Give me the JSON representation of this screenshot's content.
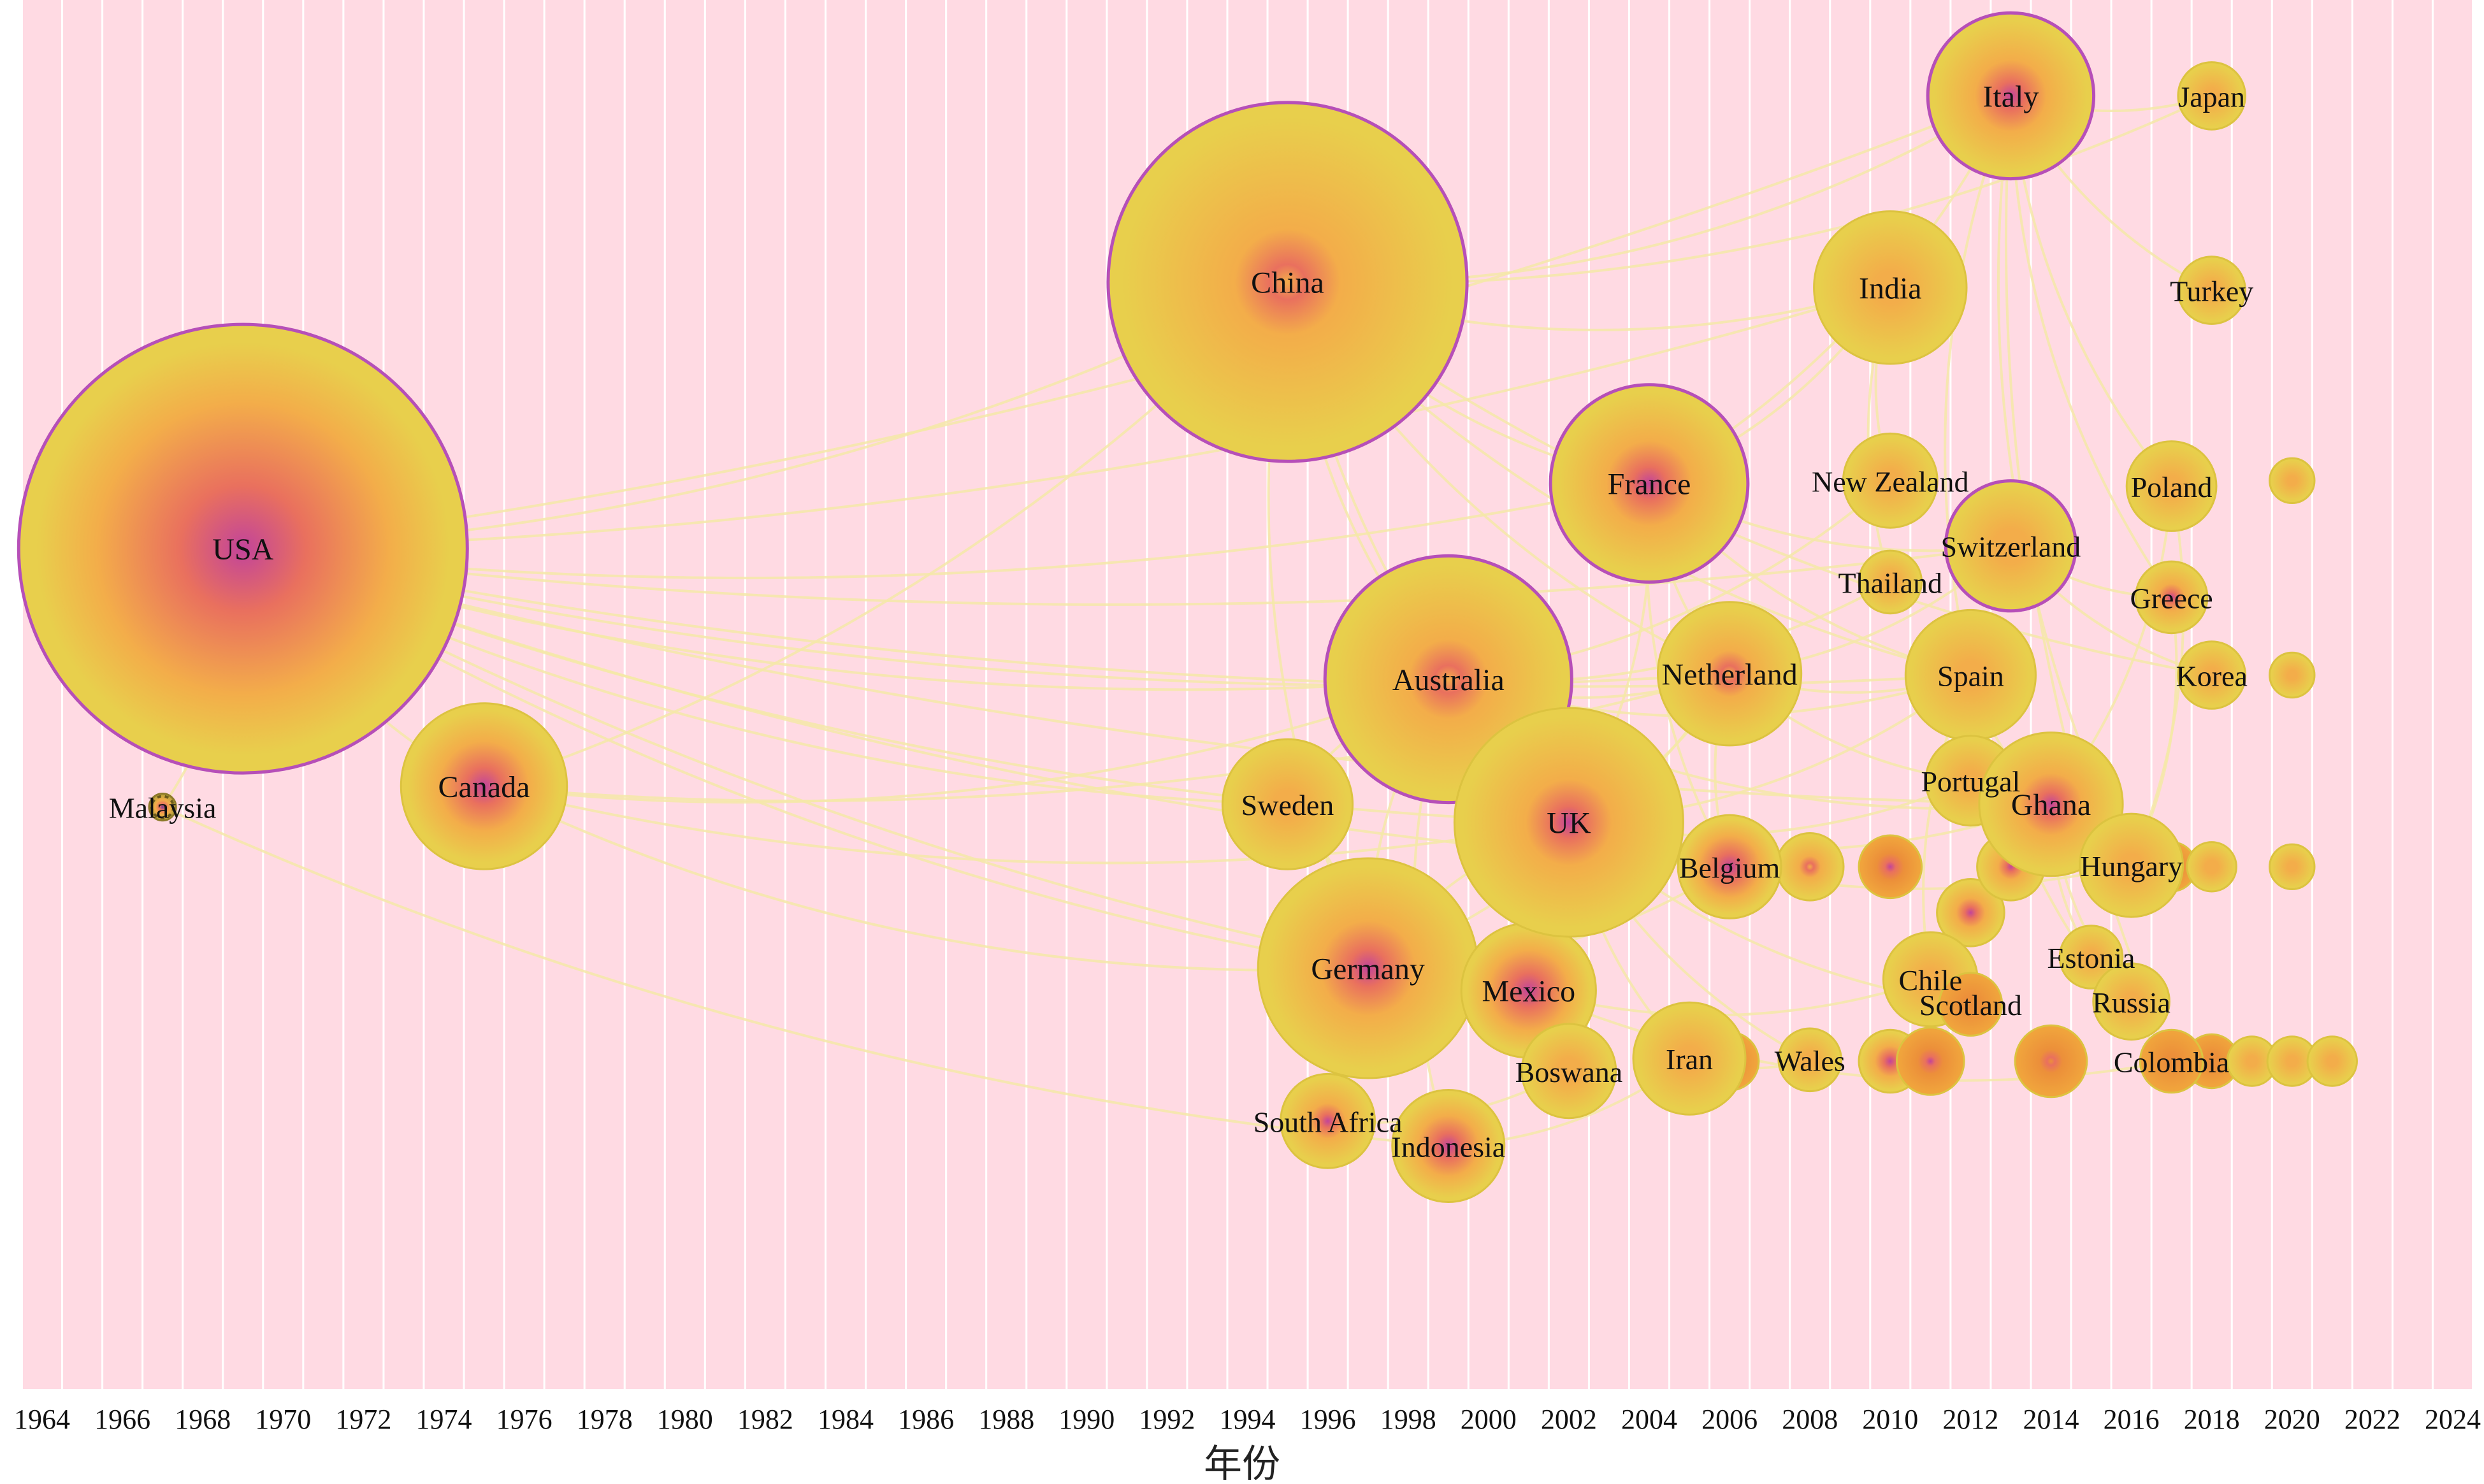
{
  "axis": {
    "title": "年份",
    "year_min": 1964,
    "year_max": 2024,
    "tick_step": 2,
    "ticks": [
      "1964",
      "1966",
      "1968",
      "1970",
      "1972",
      "1974",
      "1976",
      "1978",
      "1980",
      "1982",
      "1984",
      "1986",
      "1988",
      "1990",
      "1992",
      "1994",
      "1996",
      "1998",
      "2000",
      "2002",
      "2004",
      "2006",
      "2008",
      "2010",
      "2012",
      "2014",
      "2016",
      "2018",
      "2020",
      "2022",
      "2024"
    ]
  },
  "colors": {
    "stripe": "#ffdae3",
    "node_outer": "#e8cf4c",
    "node_mid": "#f3ad4a",
    "node_inner": "#c2449a",
    "ring": "#b64fb8",
    "link": "#f5e7a8"
  },
  "nodes": [
    {
      "label": "USA",
      "year": 1969,
      "row": 0.395,
      "size": 100,
      "core": 1.0,
      "ring": true
    },
    {
      "label": "Malaysia",
      "year": 1967,
      "row": 0.581,
      "size": 6,
      "core": 0.8,
      "dark": true
    },
    {
      "label": "Canada",
      "year": 1975,
      "row": 0.566,
      "size": 37,
      "core": 0.8
    },
    {
      "label": "China",
      "year": 1995,
      "row": 0.203,
      "size": 80,
      "core": 0.35,
      "ring": true
    },
    {
      "label": "Australia",
      "year": 1999,
      "row": 0.489,
      "size": 55,
      "core": 0.4,
      "ring": true
    },
    {
      "label": "Sweden",
      "year": 1995,
      "row": 0.579,
      "size": 29,
      "core": 0.2
    },
    {
      "label": "Germany",
      "year": 1997,
      "row": 0.697,
      "size": 49,
      "core": 0.6
    },
    {
      "label": "South Africa",
      "year": 1996,
      "row": 0.807,
      "size": 21,
      "core": 0.5
    },
    {
      "label": "Indonesia",
      "year": 1999,
      "row": 0.825,
      "size": 25,
      "core": 0.8
    },
    {
      "label": "Mexico",
      "year": 2001,
      "row": 0.713,
      "size": 30,
      "core": 0.9
    },
    {
      "label": "UK",
      "year": 2002,
      "row": 0.592,
      "size": 51,
      "core": 0.5
    },
    {
      "label": "France",
      "year": 2004,
      "row": 0.348,
      "size": 44,
      "core": 0.6,
      "ring": true
    },
    {
      "label": "Boswana",
      "year": 2002,
      "row": 0.771,
      "size": 21,
      "core": 0.3
    },
    {
      "label": "Iran",
      "year": 2005,
      "row": 0.762,
      "size": 25,
      "core": 0.2
    },
    {
      "label": "Netherland",
      "year": 2006,
      "row": 0.485,
      "size": 32,
      "core": 0.4
    },
    {
      "label": "Belgium",
      "year": 2006,
      "row": 0.624,
      "size": 23,
      "core": 0.9
    },
    {
      "label": "Wales",
      "year": 2008,
      "row": 0.763,
      "size": 14,
      "core": 0.2
    },
    {
      "label": "India",
      "year": 2010,
      "row": 0.207,
      "size": 34,
      "core": 0.2
    },
    {
      "label": "New Zealand",
      "year": 2010,
      "row": 0.346,
      "size": 21,
      "core": 0.2
    },
    {
      "label": "Thailand",
      "year": 2010,
      "row": 0.419,
      "size": 14,
      "core": 0.3
    },
    {
      "label": "Chile",
      "year": 2011,
      "row": 0.705,
      "size": 21,
      "core": 0.2
    },
    {
      "label": "Spain",
      "year": 2012,
      "row": 0.486,
      "size": 29,
      "core": 0.2
    },
    {
      "label": "Portugal",
      "year": 2012,
      "row": 0.562,
      "size": 20,
      "core": 0.2
    },
    {
      "label": "Scotland",
      "year": 2012,
      "row": 0.723,
      "size": 14,
      "core": 0.3,
      "orange": true
    },
    {
      "label": "Italy",
      "year": 2013,
      "row": 0.069,
      "size": 37,
      "core": 0.6,
      "ring": true
    },
    {
      "label": "Switzerland",
      "year": 2013,
      "row": 0.393,
      "size": 29,
      "core": 0.3,
      "ring": true
    },
    {
      "label": "Ghana",
      "year": 2014,
      "row": 0.579,
      "size": 32,
      "core": 0.6
    },
    {
      "label": "Hungary",
      "year": 2016,
      "row": 0.623,
      "size": 23,
      "core": 0.2
    },
    {
      "label": "Estonia",
      "year": 2015,
      "row": 0.689,
      "size": 14,
      "core": 0.2
    },
    {
      "label": "Russia",
      "year": 2016,
      "row": 0.721,
      "size": 17,
      "core": 0.2
    },
    {
      "label": "Poland",
      "year": 2017,
      "row": 0.35,
      "size": 20,
      "core": 0.2
    },
    {
      "label": "Greece",
      "year": 2017,
      "row": 0.43,
      "size": 16,
      "core": 0.5
    },
    {
      "label": "Colombia",
      "year": 2017,
      "row": 0.764,
      "size": 14,
      "core": 0.2,
      "orange": true
    },
    {
      "label": "Japan",
      "year": 2018,
      "row": 0.069,
      "size": 15,
      "core": 0.2
    },
    {
      "label": "Turkey",
      "year": 2018,
      "row": 0.209,
      "size": 15,
      "core": 0.2
    },
    {
      "label": "Korea",
      "year": 2018,
      "row": 0.486,
      "size": 15,
      "core": 0.2
    }
  ],
  "minor_nodes": [
    {
      "year": 2008,
      "row": 0.624,
      "size": 15,
      "core": 0.4
    },
    {
      "year": 2010,
      "row": 0.624,
      "size": 14,
      "core": 0.6,
      "orange": true
    },
    {
      "year": 2012,
      "row": 0.657,
      "size": 15,
      "core": 0.6
    },
    {
      "year": 2013,
      "row": 0.624,
      "size": 15,
      "core": 0.5
    },
    {
      "year": 2017,
      "row": 0.624,
      "size": 11,
      "core": 0.4,
      "orange": true
    },
    {
      "year": 2018,
      "row": 0.624,
      "size": 11,
      "core": 0.3
    },
    {
      "year": 2020,
      "row": 0.624,
      "size": 10,
      "core": 0.2
    },
    {
      "year": 2020,
      "row": 0.346,
      "size": 10,
      "core": 0.2
    },
    {
      "year": 2020,
      "row": 0.486,
      "size": 10,
      "core": 0.2
    },
    {
      "year": 2006,
      "row": 0.764,
      "size": 13,
      "core": 0.4,
      "orange": true
    },
    {
      "year": 2010,
      "row": 0.764,
      "size": 14,
      "core": 0.7
    },
    {
      "year": 2011,
      "row": 0.764,
      "size": 15,
      "core": 0.5,
      "orange": true
    },
    {
      "year": 2014,
      "row": 0.764,
      "size": 16,
      "core": 0.4,
      "orange": true
    },
    {
      "year": 2018,
      "row": 0.764,
      "size": 12,
      "core": 0.3,
      "orange": true
    },
    {
      "year": 2019,
      "row": 0.764,
      "size": 11,
      "core": 0.2
    },
    {
      "year": 2020,
      "row": 0.764,
      "size": 11,
      "core": 0.2
    },
    {
      "year": 2021,
      "row": 0.764,
      "size": 11,
      "core": 0.2
    }
  ],
  "links": [
    [
      "USA",
      "China"
    ],
    [
      "USA",
      "Australia"
    ],
    [
      "USA",
      "UK"
    ],
    [
      "USA",
      "Canada"
    ],
    [
      "USA",
      "Germany"
    ],
    [
      "USA",
      "France"
    ],
    [
      "USA",
      "Netherland"
    ],
    [
      "USA",
      "Sweden"
    ],
    [
      "USA",
      "Italy"
    ],
    [
      "USA",
      "India"
    ],
    [
      "USA",
      "Spain"
    ],
    [
      "USA",
      "Belgium"
    ],
    [
      "USA",
      "Mexico"
    ],
    [
      "USA",
      "Switzerland"
    ],
    [
      "USA",
      "Ghana"
    ],
    [
      "Canada",
      "Australia"
    ],
    [
      "Canada",
      "UK"
    ],
    [
      "Canada",
      "China"
    ],
    [
      "Canada",
      "Netherland"
    ],
    [
      "Canada",
      "Germany"
    ],
    [
      "Malaysia",
      "Indonesia"
    ],
    [
      "Malaysia",
      "USA"
    ],
    [
      "China",
      "Australia"
    ],
    [
      "China",
      "UK"
    ],
    [
      "China",
      "Italy"
    ],
    [
      "China",
      "India"
    ],
    [
      "China",
      "France"
    ],
    [
      "China",
      "Netherland"
    ],
    [
      "China",
      "Germany"
    ],
    [
      "China",
      "Japan"
    ],
    [
      "China",
      "Korea"
    ],
    [
      "China",
      "Spain"
    ],
    [
      "Australia",
      "UK"
    ],
    [
      "Australia",
      "New Zealand"
    ],
    [
      "Australia",
      "Netherland"
    ],
    [
      "Australia",
      "Spain"
    ],
    [
      "Australia",
      "Germany"
    ],
    [
      "Australia",
      "Sweden"
    ],
    [
      "Australia",
      "Indonesia"
    ],
    [
      "Australia",
      "Ghana"
    ],
    [
      "Australia",
      "Thailand"
    ],
    [
      "UK",
      "Netherland"
    ],
    [
      "UK",
      "Germany"
    ],
    [
      "UK",
      "France"
    ],
    [
      "UK",
      "Belgium"
    ],
    [
      "UK",
      "Ghana"
    ],
    [
      "UK",
      "Spain"
    ],
    [
      "UK",
      "Portugal"
    ],
    [
      "UK",
      "Hungary"
    ],
    [
      "UK",
      "Iran"
    ],
    [
      "UK",
      "Boswana"
    ],
    [
      "UK",
      "Scotland"
    ],
    [
      "UK",
      "Wales"
    ],
    [
      "Germany",
      "Netherland"
    ],
    [
      "Germany",
      "Mexico"
    ],
    [
      "Germany",
      "Belgium"
    ],
    [
      "Germany",
      "Sweden"
    ],
    [
      "Germany",
      "South Africa"
    ],
    [
      "France",
      "Italy"
    ],
    [
      "France",
      "Netherland"
    ],
    [
      "France",
      "Spain"
    ],
    [
      "France",
      "Belgium"
    ],
    [
      "France",
      "Switzerland"
    ],
    [
      "France",
      "India"
    ],
    [
      "Italy",
      "Spain"
    ],
    [
      "Italy",
      "Poland"
    ],
    [
      "Italy",
      "Greece"
    ],
    [
      "Italy",
      "Turkey"
    ],
    [
      "Italy",
      "Hungary"
    ],
    [
      "Italy",
      "Colombia"
    ],
    [
      "Italy",
      "Japan"
    ],
    [
      "Netherland",
      "Belgium"
    ],
    [
      "Netherland",
      "Spain"
    ],
    [
      "Netherland",
      "Switzerland"
    ],
    [
      "Netherland",
      "Portugal"
    ],
    [
      "Spain",
      "Portugal"
    ],
    [
      "Spain",
      "Chile"
    ],
    [
      "Spain",
      "Colombia"
    ],
    [
      "Spain",
      "Ghana"
    ],
    [
      "Ghana",
      "Hungary"
    ],
    [
      "Ghana",
      "Estonia"
    ],
    [
      "Ghana",
      "Russia"
    ],
    [
      "Ghana",
      "Poland"
    ],
    [
      "Hungary",
      "Poland"
    ],
    [
      "Hungary",
      "Greece"
    ],
    [
      "Switzerland",
      "Korea"
    ],
    [
      "Switzerland",
      "Greece"
    ],
    [
      "Mexico",
      "Chile"
    ],
    [
      "Mexico",
      "Colombia"
    ],
    [
      "Iran",
      "Wales"
    ],
    [
      "South Africa",
      "Boswana"
    ],
    [
      "Indonesia",
      "Iran"
    ],
    [
      "India",
      "Thailand"
    ],
    [
      "India",
      "New Zealand"
    ]
  ]
}
